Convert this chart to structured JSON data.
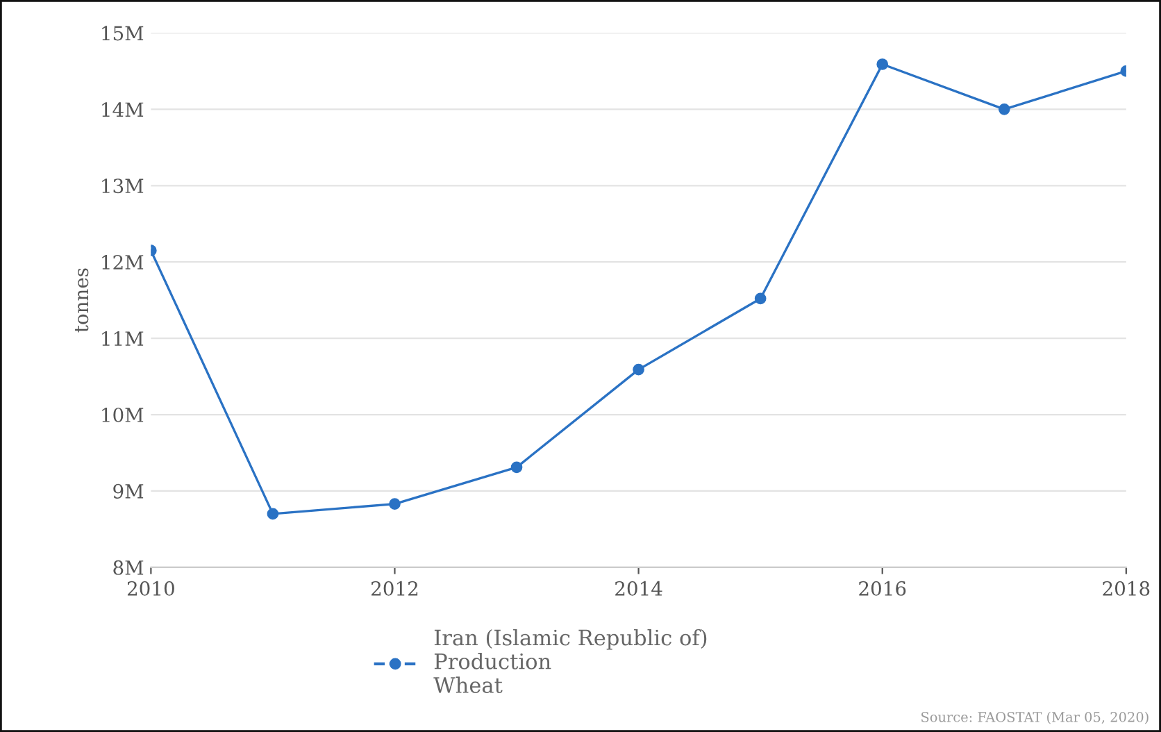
{
  "chart_data": {
    "type": "line",
    "ylabel": "tonnes",
    "x": [
      2010,
      2011,
      2012,
      2013,
      2014,
      2015,
      2016,
      2017,
      2018
    ],
    "series": [
      {
        "name": "Iran (Islamic Republic of)\nProduction\nWheat",
        "color": "#2a72c4",
        "values": [
          12150000,
          8700000,
          8830000,
          9310000,
          10590000,
          11520000,
          14590000,
          14000000,
          14500000
        ]
      }
    ],
    "xlim": [
      2010,
      2018
    ],
    "xticks": [
      2010,
      2012,
      2014,
      2016,
      2018
    ],
    "ylim": [
      8000000,
      15000000
    ],
    "yticks": [
      {
        "value": 8000000,
        "label": "8M"
      },
      {
        "value": 9000000,
        "label": "9M"
      },
      {
        "value": 10000000,
        "label": "10M"
      },
      {
        "value": 11000000,
        "label": "11M"
      },
      {
        "value": 12000000,
        "label": "12M"
      },
      {
        "value": 13000000,
        "label": "13M"
      },
      {
        "value": 14000000,
        "label": "14M"
      },
      {
        "value": 15000000,
        "label": "15M"
      }
    ],
    "grid": "y",
    "legend": "bottom",
    "marker": "circle",
    "line_style": "solid",
    "annotations": [
      "Source: FAOSTAT (Mar 05, 2020)"
    ]
  }
}
